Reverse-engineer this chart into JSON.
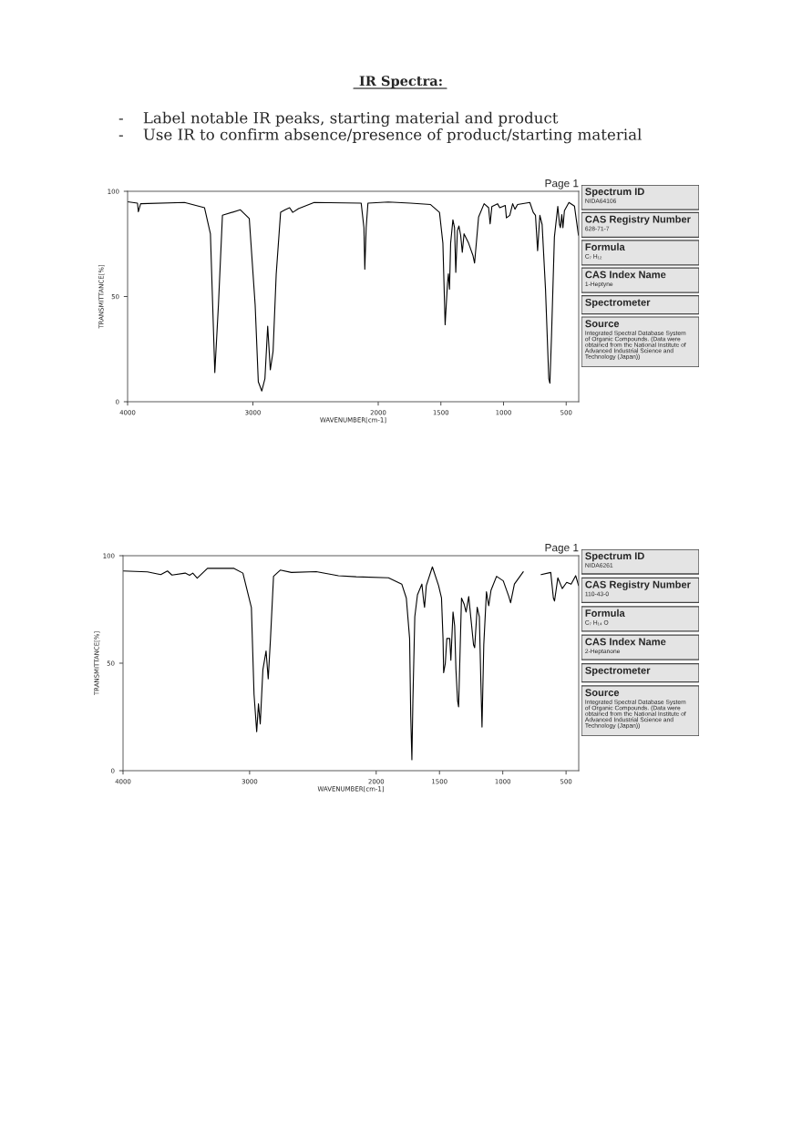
{
  "chart_data": [
    {
      "type": "line",
      "title": "IR Spectra:",
      "subtitle": "-    Label notable IR peaks, starting material and product\n-    Use IR to confirm absence/presence of product/starting material",
      "xlabel": "WAVENUMBER[cm-1]",
      "ylabel": "TRANSMITTANCE[%]",
      "annotations": [
        "Page 1"
      ],
      "xlim": [
        4000,
        400
      ],
      "ylim": [
        0,
        100
      ],
      "xticks": [
        4000,
        3000,
        2000,
        1500,
        1000,
        500
      ],
      "yticks": [
        0,
        50,
        100
      ],
      "series": [
        {
          "color": "#000000",
          "x": [
            4000,
            3921,
            3914,
            3896,
            3546,
            3386,
            3339,
            3304,
            3275,
            3243,
            3100,
            3029,
            2982,
            2957,
            2929,
            2904,
            2882,
            2861,
            2839,
            2814,
            2779,
            2743,
            2707,
            2682,
            2636,
            2511,
            2136,
            2114,
            2107,
            2096,
            2082,
            1920,
            1742,
            1582,
            1511,
            1484,
            1466,
            1457,
            1447,
            1440,
            1431,
            1422,
            1404,
            1391,
            1381,
            1368,
            1356,
            1342,
            1329,
            1315,
            1279,
            1244,
            1231,
            1217,
            1199,
            1155,
            1119,
            1107,
            1093,
            1048,
            1030,
            986,
            977,
            950,
            927,
            909,
            888,
            790,
            763,
            745,
            728,
            710,
            692,
            665,
            639,
            630,
            617,
            594,
            567,
            553,
            546,
            535,
            526,
            514,
            478,
            434,
            402
          ],
          "values": [
            95.0,
            94.4,
            90.3,
            94.1,
            94.7,
            92.2,
            79.8,
            13.9,
            46.1,
            88.6,
            91.2,
            87.1,
            46.0,
            9.5,
            5.1,
            11.0,
            35.9,
            15.2,
            24.0,
            60.7,
            90.0,
            91.2,
            92.2,
            90.0,
            91.8,
            94.7,
            94.4,
            82.7,
            63.0,
            82.7,
            94.4,
            94.9,
            94.4,
            93.7,
            90.0,
            75.4,
            36.6,
            46.1,
            56.4,
            60.8,
            53.5,
            75.4,
            86.4,
            82.7,
            61.5,
            81.3,
            83.5,
            79.1,
            71.0,
            79.8,
            75.4,
            69.5,
            65.9,
            75.4,
            87.8,
            94.1,
            92.2,
            84.5,
            92.8,
            94.1,
            92.2,
            93.3,
            87.4,
            88.6,
            94.1,
            91.5,
            93.7,
            94.7,
            90.0,
            88.6,
            71.8,
            88.6,
            84.2,
            53.5,
            11.0,
            8.8,
            31.3,
            78.3,
            92.8,
            84.2,
            82.7,
            88.9,
            82.7,
            90.8,
            94.7,
            93.0,
            79.1
          ]
        }
      ]
    },
    {
      "type": "other",
      "annotations": [
        "Spectrum ID\nNIDA64106",
        "CAS Registry Number\n628-71-7",
        "Formula\nC₇ H₁₂",
        "CAS Index Name\n1-Heptyne",
        "Spectrometer",
        "Source\nIntegrated Spectral Database System\nof Organic Compounds. (Data were\nobtained from the National Institute of\nAdvanced Industrial Science and\nTechnology (Japan))"
      ]
    },
    {
      "type": "line",
      "xlabel": "WAVENUMBER[cm-1]",
      "ylabel": "TRANSMITTANCE[%]",
      "annotations": [
        "Page 1"
      ],
      "xlim": [
        4000,
        400
      ],
      "ylim": [
        0,
        100
      ],
      "xticks": [
        4000,
        3000,
        2000,
        1500,
        1000,
        500
      ],
      "yticks": [
        0,
        50,
        100
      ],
      "series": [
        {
          "color": "#000000",
          "x": [
            4000,
            3807,
            3702,
            3649,
            3614,
            3509,
            3474,
            3449,
            3414,
            3333,
            3123,
            3053,
            2986,
            2965,
            2944,
            2930,
            2916,
            2895,
            2870,
            2853,
            2835,
            2811,
            2758,
            2670,
            2474,
            2298,
            2158,
            1903,
            1798,
            1762,
            1736,
            1727,
            1718,
            1710,
            1695,
            1674,
            1639,
            1625,
            1618,
            1604,
            1556,
            1507,
            1484,
            1472,
            1467,
            1454,
            1442,
            1419,
            1410,
            1393,
            1380,
            1370,
            1357,
            1349,
            1326,
            1305,
            1290,
            1269,
            1248,
            1231,
            1222,
            1202,
            1185,
            1173,
            1164,
            1150,
            1129,
            1111,
            1093,
            1049,
            996,
            952,
            938,
            908,
            838,
            780,
            697,
            621,
            600,
            591,
            565,
            530,
            495,
            460,
            424,
            401
          ],
          "values": [
            92.9,
            92.5,
            91.2,
            92.9,
            91.0,
            91.9,
            90.9,
            91.9,
            89.6,
            94.1,
            94.1,
            91.9,
            75.9,
            35.5,
            18.1,
            31.1,
            21.7,
            47.0,
            55.7,
            42.7,
            61.5,
            90.4,
            93.3,
            92.2,
            92.6,
            90.7,
            90.2,
            89.7,
            86.8,
            80.3,
            61.5,
            25.3,
            5.1,
            32.6,
            71.6,
            81.8,
            86.8,
            78.9,
            76.0,
            86.1,
            94.8,
            86.1,
            80.3,
            61.5,
            45.6,
            49.9,
            61.5,
            61.5,
            51.4,
            73.8,
            67.3,
            47.0,
            32.6,
            29.7,
            80.3,
            77.4,
            73.8,
            81.0,
            68.7,
            58.6,
            57.2,
            76.0,
            71.6,
            41.2,
            20.3,
            58.6,
            83.2,
            76.7,
            83.9,
            90.4,
            88.3,
            81.0,
            78.1,
            86.8,
            92.5,
            null,
            91.2,
            92.2,
            80.3,
            78.9,
            89.7,
            84.7,
            87.6,
            86.8,
            90.7,
            86.1
          ]
        }
      ]
    },
    {
      "type": "other",
      "annotations": [
        "Spectrum ID\nNIDA6261",
        "CAS Registry Number\n110-43-0",
        "Formula\nC₇ H₁₄ O",
        "CAS Index Name\n2-Heptanone",
        "Spectrometer",
        "Source\nIntegrated Spectral Database System\nof Organic Compounds. (Data were\nobtained from the National Institute of\nAdvanced Industrial Science and\nTechnology (Japan))"
      ]
    }
  ]
}
